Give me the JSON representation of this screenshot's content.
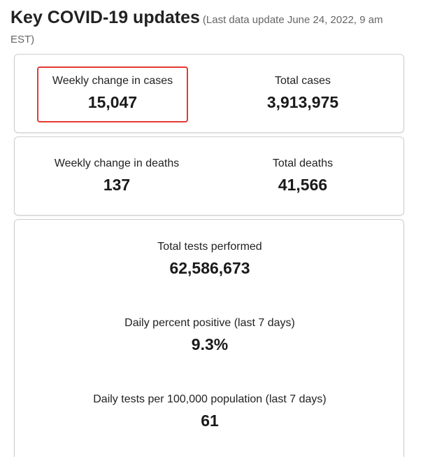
{
  "header": {
    "title": "Key COVID-19 updates",
    "subtitle_line1": "(Last data update June 24, 2022, 9 am",
    "subtitle_line2": "EST)"
  },
  "cases": {
    "weekly_label": "Weekly change in cases",
    "weekly_value": "15,047",
    "total_label": "Total cases",
    "total_value": "3,913,975"
  },
  "deaths": {
    "weekly_label": "Weekly change in deaths",
    "weekly_value": "137",
    "total_label": "Total deaths",
    "total_value": "41,566"
  },
  "testing": {
    "tests_label": "Total tests performed",
    "tests_value": "62,586,673",
    "positive_label": "Daily percent positive (last 7 days)",
    "positive_value": "9.3%",
    "per100k_label": "Daily tests per 100,000 population (last 7 days)",
    "per100k_value": "61"
  },
  "colors": {
    "highlight_border": "#e53935",
    "card_border": "#cfcfcf",
    "subtitle": "#666666"
  }
}
